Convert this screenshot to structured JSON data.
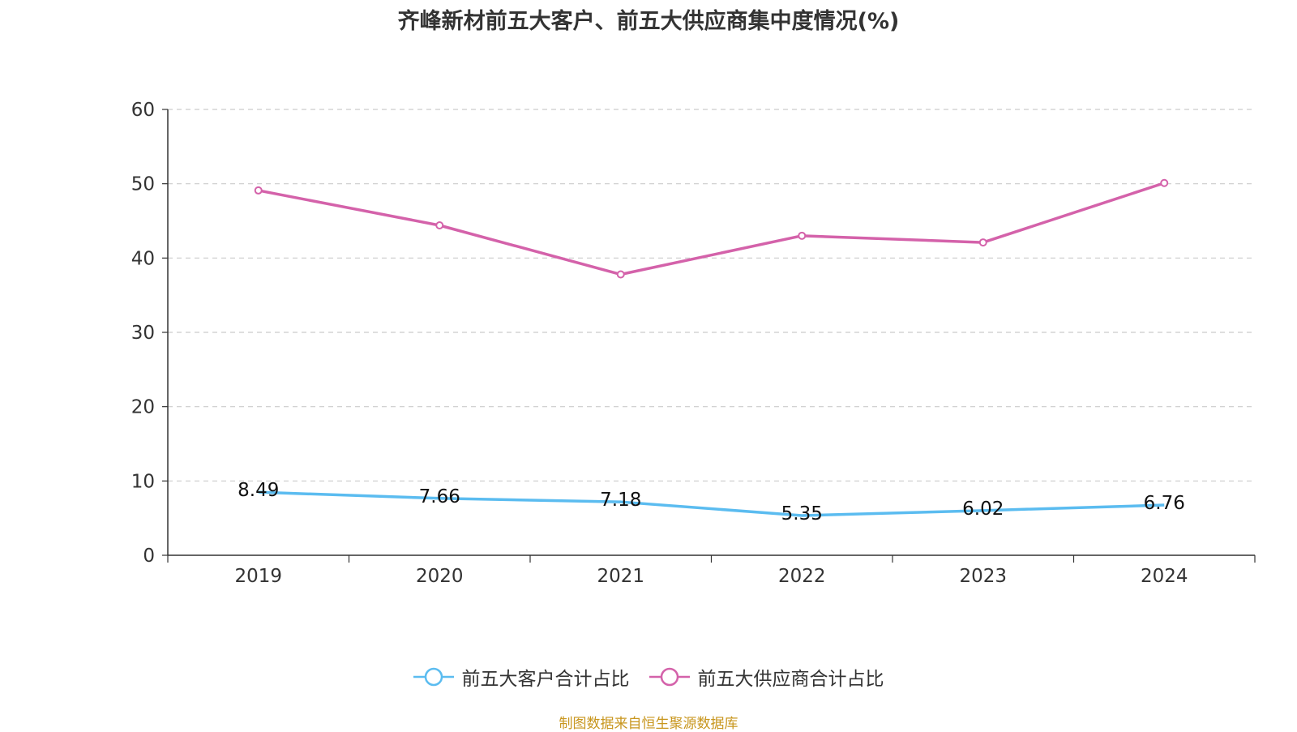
{
  "chart_data": {
    "type": "line",
    "title": "齐峰新材前五大客户、前五大供应商集中度情况(%)",
    "categories": [
      "2019",
      "2020",
      "2021",
      "2022",
      "2023",
      "2024"
    ],
    "series": [
      {
        "name": "前五大客户合计占比",
        "color": "#5bbcf0",
        "values": [
          8.49,
          7.66,
          7.18,
          5.35,
          6.02,
          6.76
        ],
        "labels": [
          "8.49",
          "7.66",
          "7.18",
          "5.35",
          "6.02",
          "6.76"
        ]
      },
      {
        "name": "前五大供应商合计占比",
        "color": "#d462aa",
        "values": [
          49.1,
          44.4,
          37.8,
          43.0,
          42.1,
          50.1
        ]
      }
    ],
    "yticks": [
      "0",
      "10",
      "20",
      "30",
      "40",
      "50",
      "60"
    ],
    "ylim": [
      0,
      60
    ],
    "grid": true,
    "legend_position": "bottom-center"
  },
  "source": "制图数据来自恒生聚源数据库"
}
